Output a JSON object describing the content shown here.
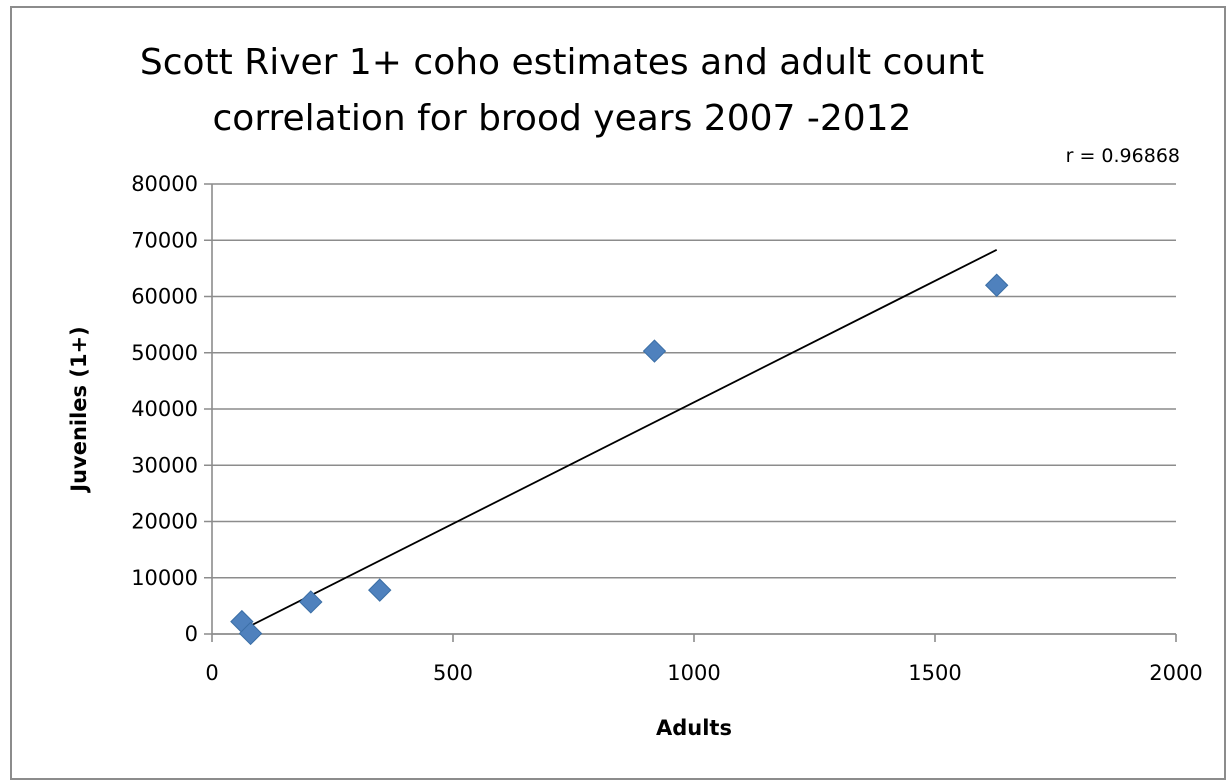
{
  "chart_data": {
    "type": "scatter",
    "title_lines": [
      "Scott River 1+ coho estimates and adult count",
      "correlation for brood years 2007 -2012"
    ],
    "xlabel": "Adults",
    "ylabel": "Juveniles  (1+)",
    "xlim": [
      0,
      2000
    ],
    "ylim": [
      0,
      80000
    ],
    "x_ticks": [
      0,
      500,
      1000,
      1500,
      2000
    ],
    "y_ticks": [
      0,
      10000,
      20000,
      30000,
      40000,
      50000,
      60000,
      70000,
      80000
    ],
    "grid": "horizontal",
    "legend": "none",
    "points": [
      {
        "x": 62,
        "y": 2200
      },
      {
        "x": 80,
        "y": 100
      },
      {
        "x": 205,
        "y": 5700
      },
      {
        "x": 348,
        "y": 7800
      },
      {
        "x": 918,
        "y": 50300
      },
      {
        "x": 1628,
        "y": 62000
      }
    ],
    "trendline": {
      "x": [
        62,
        1628
      ],
      "y": [
        700,
        68300
      ]
    },
    "annotation": "r =  0.96868",
    "marker_color": "#4f81bd",
    "trendline_color": "#000000",
    "grid_color": "#8c8c8c"
  }
}
